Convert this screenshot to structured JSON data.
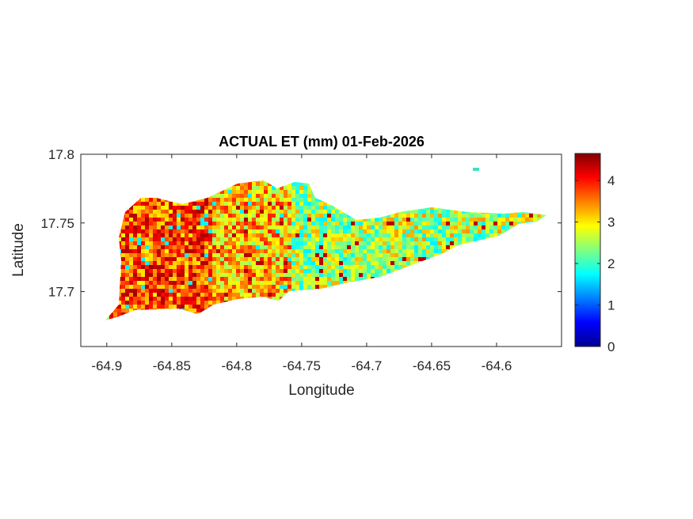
{
  "chart_data": {
    "type": "heatmap",
    "title": "ACTUAL ET (mm) 01-Feb-2026",
    "xlabel": "Longitude",
    "ylabel": "Latitude",
    "xlim": [
      -64.92,
      -64.55
    ],
    "ylim": [
      17.66,
      17.8
    ],
    "x_ticks": [
      -64.9,
      -64.85,
      -64.8,
      -64.75,
      -64.7,
      -64.65,
      -64.6
    ],
    "x_tick_labels": [
      "-64.9",
      "-64.85",
      "-64.8",
      "-64.75",
      "-64.7",
      "-64.65",
      "-64.6"
    ],
    "y_ticks": [
      17.8,
      17.75,
      17.7
    ],
    "y_tick_labels": [
      "17.8",
      "17.75",
      "17.7"
    ],
    "colorbar": {
      "colormap": "jet",
      "clim": [
        0,
        4.65
      ],
      "ticks": [
        0,
        1,
        2,
        3,
        4
      ],
      "tick_labels": [
        "0",
        "1",
        "2",
        "3",
        "4"
      ]
    },
    "grid": false,
    "regions": [
      {
        "lon_range": [
          -64.9,
          -64.82
        ],
        "approx_value": 3.7
      },
      {
        "lon_range": [
          -64.82,
          -64.76
        ],
        "approx_value": 3.2
      },
      {
        "lon_range": [
          -64.76,
          -64.69
        ],
        "approx_value": 2.5
      },
      {
        "lon_range": [
          -64.69,
          -64.57
        ],
        "approx_value": 2.6
      }
    ]
  }
}
